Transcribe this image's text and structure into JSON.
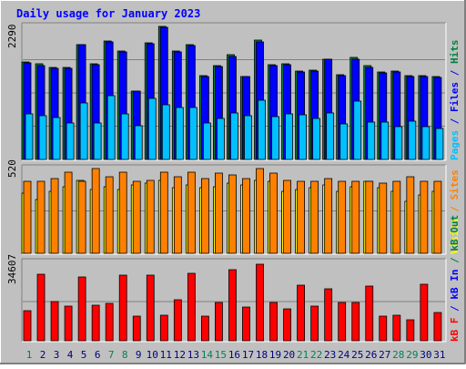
{
  "chart_data": {
    "title": "Daily usage for January 2023",
    "type": "bar",
    "categories": [
      "1",
      "2",
      "3",
      "4",
      "5",
      "6",
      "7",
      "8",
      "9",
      "10",
      "11",
      "12",
      "13",
      "14",
      "15",
      "16",
      "17",
      "18",
      "19",
      "20",
      "21",
      "22",
      "23",
      "24",
      "25",
      "26",
      "27",
      "28",
      "29",
      "30",
      "31"
    ],
    "weekend_days": [
      "1",
      "7",
      "8",
      "14",
      "15",
      "21",
      "22",
      "28",
      "29"
    ],
    "panels": [
      {
        "name": "hits-files-pages",
        "ymax_label": "2290",
        "ylim": [
          0,
          2290
        ],
        "side_label": {
          "parts": [
            {
              "text": "Pages",
              "color": "#00c0ff"
            },
            {
              "text": " / ",
              "color": "#0000ff"
            },
            {
              "text": "Files",
              "color": "#0000ff"
            },
            {
              "text": " / ",
              "color": "#0000ff"
            },
            {
              "text": "Hits",
              "color": "#008040"
            }
          ]
        },
        "series": [
          {
            "name": "Hits",
            "color": "#008040",
            "values": [
              1680,
              1640,
              1580,
              1580,
              1980,
              1640,
              2040,
              1870,
              1180,
              2010,
              2290,
              1870,
              1980,
              1440,
              1620,
              1800,
              1430,
              2050,
              1630,
              1650,
              1520,
              1540,
              1730,
              1460,
              1750,
              1610,
              1500,
              1520,
              1440,
              1440,
              1420
            ]
          },
          {
            "name": "Files",
            "color": "#0000ff",
            "values": [
              1670,
              1610,
              1570,
              1570,
              1970,
              1630,
              2030,
              1850,
              1170,
              1990,
              2280,
              1850,
              1960,
              1430,
              1600,
              1780,
              1420,
              2030,
              1620,
              1630,
              1500,
              1520,
              1720,
              1450,
              1730,
              1590,
              1490,
              1510,
              1430,
              1430,
              1410
            ]
          },
          {
            "name": "Pages",
            "color": "#00c0ff",
            "values": [
              780,
              750,
              720,
              630,
              970,
              630,
              1100,
              790,
              580,
              1050,
              940,
              900,
              900,
              630,
              710,
              800,
              760,
              1020,
              740,
              790,
              770,
              710,
              800,
              610,
              1000,
              650,
              640,
              560,
              660,
              560,
              540
            ]
          }
        ]
      },
      {
        "name": "visits-sites",
        "ymax_label": "520",
        "ylim": [
          0,
          520
        ],
        "side_label": {
          "parts": [
            {
              "text": "Visits",
              "color": "#ffff00"
            },
            {
              "text": " / ",
              "color": "#ff8000"
            },
            {
              "text": "Sites",
              "color": "#ff8000"
            }
          ]
        },
        "series": [
          {
            "name": "Visits",
            "color": "#ffff00",
            "values": [
              370,
              330,
              380,
              410,
              450,
              390,
              410,
              390,
              420,
              430,
              450,
              400,
              420,
              400,
              410,
              430,
              420,
              450,
              440,
              380,
              390,
              400,
              420,
              380,
              410,
              440,
              400,
              380,
              320,
              360,
              380
            ]
          },
          {
            "name": "Sites",
            "color": "#ff8000",
            "values": [
              440,
              440,
              460,
              500,
              440,
              520,
              470,
              500,
              440,
              450,
              500,
              470,
              500,
              460,
              490,
              480,
              460,
              520,
              490,
              450,
              440,
              440,
              460,
              440,
              440,
              440,
              430,
              440,
              470,
              440,
              440
            ]
          }
        ]
      },
      {
        "name": "kbytes",
        "ymax_label": "34607",
        "ylim": [
          0,
          34607
        ],
        "side_label": {
          "parts": [
            {
              "text": "kB F",
              "color": "#ff0000"
            },
            {
              "text": " / ",
              "color": "#0000ff"
            },
            {
              "text": "kB In",
              "color": "#0000ff"
            },
            {
              "text": " / ",
              "color": "#008040"
            },
            {
              "text": "kB Out",
              "color": "#008040"
            }
          ]
        },
        "series": [
          {
            "name": "kB F",
            "color": "#ff0000",
            "values": [
              13300,
              29200,
              17500,
              15400,
              28000,
              15500,
              16400,
              29000,
              11000,
              29100,
              11300,
              18100,
              29900,
              10900,
              16800,
              31300,
              15000,
              33800,
              16900,
              13900,
              24400,
              15300,
              23100,
              16700,
              16800,
              24000,
              11000,
              11200,
              9300,
              25000,
              12500
            ]
          }
        ]
      }
    ]
  }
}
